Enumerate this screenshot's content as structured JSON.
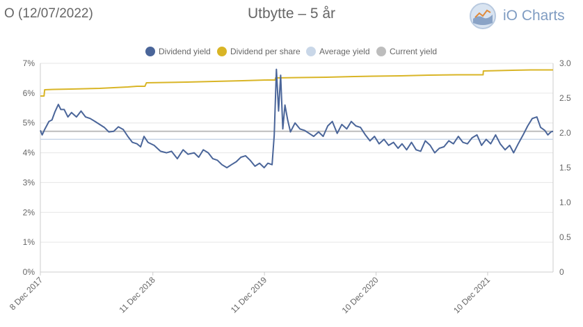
{
  "header": {
    "ticker_label": "O (12/07/2022)",
    "title": "Utbytte – 5 år",
    "brand_text": "iO Charts",
    "brand_logo_icon": "io-charts-logo-icon"
  },
  "colors": {
    "dividend_yield": "#4a6599",
    "dividend_per_share": "#d9b526",
    "average_yield": "#c9d7e8",
    "current_yield": "#bdbdbd",
    "grid": "#e6e6e6"
  },
  "chart_data": {
    "type": "line",
    "title": "Utbytte – 5 år",
    "legend_position": "top-center",
    "grid": true,
    "x_range": [
      "2017-12-08",
      "2022-07-12"
    ],
    "x_tick_labels": [
      {
        "date": "2017-12-08",
        "label": "8 Dec 2017"
      },
      {
        "date": "2018-12-11",
        "label": "11 Dec 2018"
      },
      {
        "date": "2019-12-11",
        "label": "11 Dec 2019"
      },
      {
        "date": "2020-12-10",
        "label": "10 Dec 2020"
      },
      {
        "date": "2021-12-10",
        "label": "10 Dec 2021"
      }
    ],
    "y_left": {
      "min": 0,
      "max": 7,
      "ticks": [
        "0%",
        "1%",
        "2%",
        "3%",
        "4%",
        "5%",
        "6%",
        "7%"
      ]
    },
    "y_right": {
      "min": 0,
      "max": 3.0,
      "ticks": [
        "0",
        "0.5",
        "1.0",
        "1.5",
        "2.0",
        "2.5",
        "3.0"
      ]
    },
    "series": [
      {
        "name": "Dividend yield",
        "axis": "left",
        "unit": "%",
        "points": [
          [
            "2017-12-08",
            4.75
          ],
          [
            "2017-12-14",
            4.6
          ],
          [
            "2017-12-22",
            4.78
          ],
          [
            "2018-01-05",
            5.05
          ],
          [
            "2018-01-15",
            5.1
          ],
          [
            "2018-01-25",
            5.38
          ],
          [
            "2018-02-05",
            5.62
          ],
          [
            "2018-02-13",
            5.45
          ],
          [
            "2018-02-24",
            5.45
          ],
          [
            "2018-03-08",
            5.2
          ],
          [
            "2018-03-20",
            5.35
          ],
          [
            "2018-04-05",
            5.2
          ],
          [
            "2018-04-20",
            5.4
          ],
          [
            "2018-05-05",
            5.2
          ],
          [
            "2018-05-20",
            5.15
          ],
          [
            "2018-06-05",
            5.05
          ],
          [
            "2018-06-20",
            4.95
          ],
          [
            "2018-07-05",
            4.85
          ],
          [
            "2018-07-20",
            4.7
          ],
          [
            "2018-08-05",
            4.72
          ],
          [
            "2018-08-20",
            4.87
          ],
          [
            "2018-09-05",
            4.78
          ],
          [
            "2018-09-20",
            4.55
          ],
          [
            "2018-10-05",
            4.35
          ],
          [
            "2018-10-20",
            4.3
          ],
          [
            "2018-11-01",
            4.2
          ],
          [
            "2018-11-12",
            4.55
          ],
          [
            "2018-11-25",
            4.35
          ],
          [
            "2018-12-15",
            4.25
          ],
          [
            "2019-01-05",
            4.05
          ],
          [
            "2019-01-25",
            4.0
          ],
          [
            "2019-02-10",
            4.05
          ],
          [
            "2019-03-01",
            3.8
          ],
          [
            "2019-03-20",
            4.1
          ],
          [
            "2019-04-05",
            3.95
          ],
          [
            "2019-04-25",
            4.0
          ],
          [
            "2019-05-10",
            3.85
          ],
          [
            "2019-05-25",
            4.1
          ],
          [
            "2019-06-10",
            4.0
          ],
          [
            "2019-06-25",
            3.8
          ],
          [
            "2019-07-10",
            3.75
          ],
          [
            "2019-07-25",
            3.6
          ],
          [
            "2019-08-10",
            3.5
          ],
          [
            "2019-08-25",
            3.6
          ],
          [
            "2019-09-10",
            3.7
          ],
          [
            "2019-09-25",
            3.85
          ],
          [
            "2019-10-10",
            3.9
          ],
          [
            "2019-10-25",
            3.75
          ],
          [
            "2019-11-10",
            3.55
          ],
          [
            "2019-11-25",
            3.65
          ],
          [
            "2019-12-10",
            3.5
          ],
          [
            "2019-12-22",
            3.65
          ],
          [
            "2020-01-05",
            3.6
          ],
          [
            "2020-01-12",
            4.6
          ],
          [
            "2020-01-19",
            6.8
          ],
          [
            "2020-01-26",
            5.4
          ],
          [
            "2020-02-02",
            6.6
          ],
          [
            "2020-02-09",
            4.8
          ],
          [
            "2020-02-16",
            5.6
          ],
          [
            "2020-02-25",
            5.1
          ],
          [
            "2020-03-05",
            4.7
          ],
          [
            "2020-03-20",
            5.0
          ],
          [
            "2020-04-05",
            4.8
          ],
          [
            "2020-04-20",
            4.75
          ],
          [
            "2020-05-05",
            4.65
          ],
          [
            "2020-05-20",
            4.55
          ],
          [
            "2020-06-05",
            4.7
          ],
          [
            "2020-06-20",
            4.55
          ],
          [
            "2020-07-05",
            4.9
          ],
          [
            "2020-07-20",
            5.05
          ],
          [
            "2020-08-05",
            4.65
          ],
          [
            "2020-08-20",
            4.95
          ],
          [
            "2020-09-05",
            4.8
          ],
          [
            "2020-09-20",
            5.05
          ],
          [
            "2020-10-05",
            4.9
          ],
          [
            "2020-10-20",
            4.85
          ],
          [
            "2020-11-05",
            4.6
          ],
          [
            "2020-11-20",
            4.4
          ],
          [
            "2020-12-05",
            4.55
          ],
          [
            "2020-12-20",
            4.3
          ],
          [
            "2021-01-05",
            4.45
          ],
          [
            "2021-01-20",
            4.25
          ],
          [
            "2021-02-05",
            4.35
          ],
          [
            "2021-02-20",
            4.15
          ],
          [
            "2021-03-05",
            4.3
          ],
          [
            "2021-03-20",
            4.1
          ],
          [
            "2021-04-05",
            4.35
          ],
          [
            "2021-04-20",
            4.1
          ],
          [
            "2021-05-05",
            4.05
          ],
          [
            "2021-05-20",
            4.4
          ],
          [
            "2021-06-05",
            4.25
          ],
          [
            "2021-06-20",
            4.0
          ],
          [
            "2021-07-05",
            4.15
          ],
          [
            "2021-07-20",
            4.2
          ],
          [
            "2021-08-05",
            4.4
          ],
          [
            "2021-08-20",
            4.3
          ],
          [
            "2021-09-05",
            4.55
          ],
          [
            "2021-09-20",
            4.35
          ],
          [
            "2021-10-05",
            4.3
          ],
          [
            "2021-10-20",
            4.5
          ],
          [
            "2021-11-05",
            4.6
          ],
          [
            "2021-11-20",
            4.25
          ],
          [
            "2021-12-05",
            4.45
          ],
          [
            "2021-12-20",
            4.3
          ],
          [
            "2022-01-05",
            4.6
          ],
          [
            "2022-01-20",
            4.3
          ],
          [
            "2022-02-05",
            4.1
          ],
          [
            "2022-02-20",
            4.25
          ],
          [
            "2022-03-05",
            4.0
          ],
          [
            "2022-03-20",
            4.3
          ],
          [
            "2022-04-05",
            4.6
          ],
          [
            "2022-04-20",
            4.9
          ],
          [
            "2022-05-05",
            5.15
          ],
          [
            "2022-05-20",
            5.2
          ],
          [
            "2022-06-01",
            4.85
          ],
          [
            "2022-06-15",
            4.75
          ],
          [
            "2022-06-25",
            4.6
          ],
          [
            "2022-07-05",
            4.7
          ],
          [
            "2022-07-12",
            4.72
          ]
        ]
      },
      {
        "name": "Dividend per share",
        "axis": "right",
        "points": [
          [
            "2017-12-08",
            2.53
          ],
          [
            "2017-12-20",
            2.53
          ],
          [
            "2017-12-22",
            2.62
          ],
          [
            "2018-01-20",
            2.625
          ],
          [
            "2018-03-20",
            2.63
          ],
          [
            "2018-06-20",
            2.64
          ],
          [
            "2018-09-20",
            2.66
          ],
          [
            "2018-10-20",
            2.67
          ],
          [
            "2018-11-15",
            2.67
          ],
          [
            "2018-11-20",
            2.72
          ],
          [
            "2019-04-01",
            2.73
          ],
          [
            "2019-07-01",
            2.74
          ],
          [
            "2019-10-01",
            2.75
          ],
          [
            "2019-12-20",
            2.76
          ],
          [
            "2020-01-15",
            2.76
          ],
          [
            "2020-01-16",
            2.79
          ],
          [
            "2020-04-01",
            2.795
          ],
          [
            "2020-07-01",
            2.8
          ],
          [
            "2020-10-01",
            2.81
          ],
          [
            "2020-12-01",
            2.815
          ],
          [
            "2021-03-01",
            2.82
          ],
          [
            "2021-06-01",
            2.83
          ],
          [
            "2021-09-01",
            2.835
          ],
          [
            "2021-11-25",
            2.835
          ],
          [
            "2021-11-26",
            2.89
          ],
          [
            "2022-03-01",
            2.9
          ],
          [
            "2022-05-01",
            2.905
          ],
          [
            "2022-07-12",
            2.905
          ]
        ]
      },
      {
        "name": "Average yield",
        "axis": "left",
        "unit": "%",
        "points": [
          [
            "2017-12-08",
            4.45
          ],
          [
            "2022-07-12",
            4.45
          ]
        ]
      },
      {
        "name": "Current yield",
        "axis": "left",
        "unit": "%",
        "points": [
          [
            "2017-12-08",
            4.72
          ],
          [
            "2022-07-12",
            4.72
          ]
        ]
      }
    ]
  }
}
